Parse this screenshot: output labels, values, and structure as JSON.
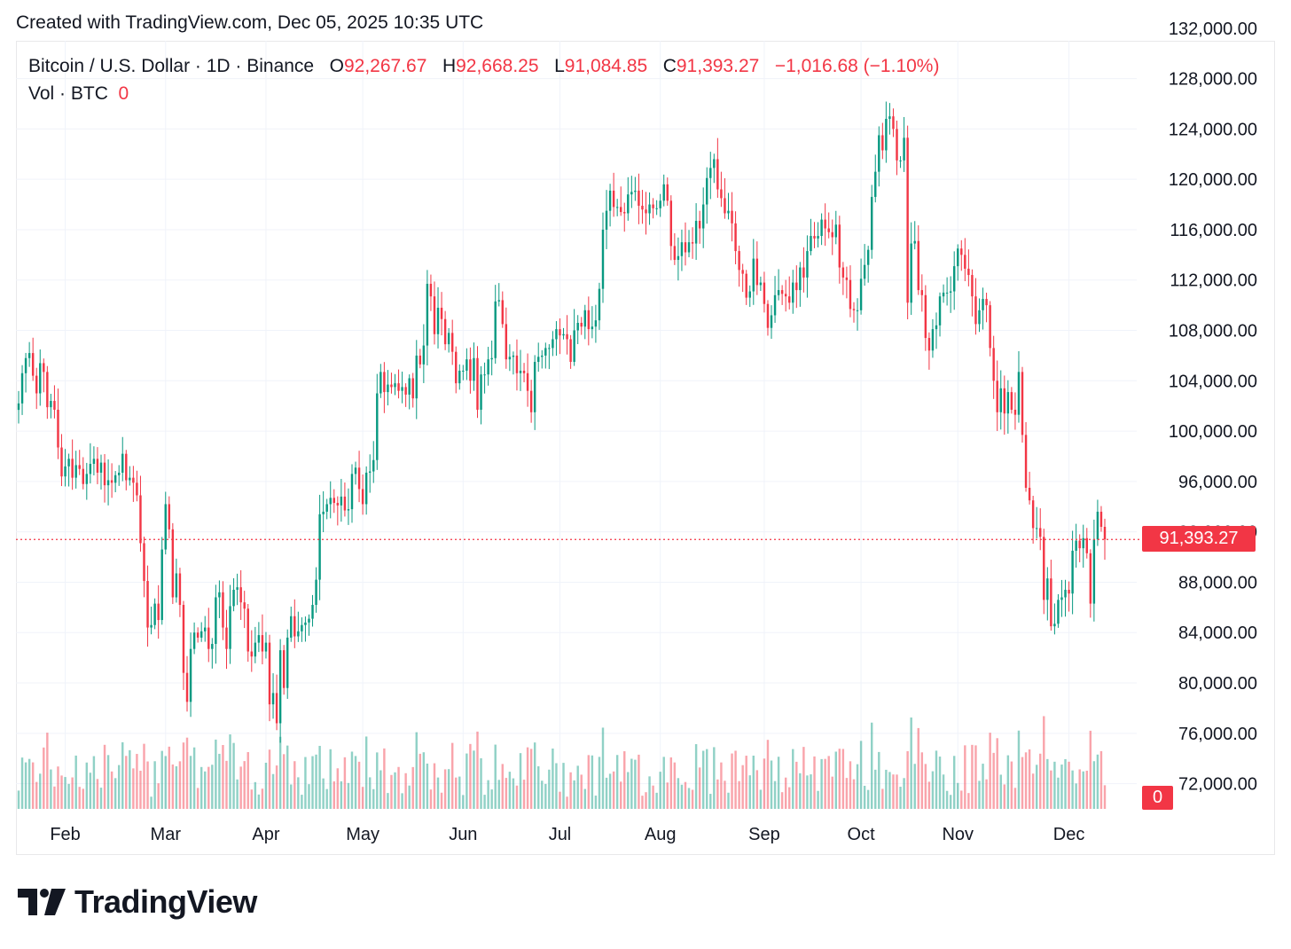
{
  "header": {
    "created_note": "Created with TradingView.com, Dec 05, 2025 10:35 UTC"
  },
  "legend": {
    "symbol": "Bitcoin / U.S. Dollar · 1D · Binance",
    "o_label": "O",
    "o_value": "92,267.67",
    "h_label": "H",
    "h_value": "92,668.25",
    "l_label": "L",
    "l_value": "91,084.85",
    "c_label": "C",
    "c_value": "91,393.27",
    "change": "−1,016.68 (−1.10%)",
    "vol_label": "Vol · BTC",
    "vol_value": "0"
  },
  "price_tag": "91,393.27",
  "vol_tag": "0",
  "logo": {
    "text": "TradingView"
  },
  "colors": {
    "up": "#089981",
    "down": "#f23645",
    "grid": "#f0f3fa",
    "text": "#131722"
  },
  "chart_data": {
    "type": "candlestick",
    "ylim": [
      70000,
      132000
    ],
    "y_ticks": [
      "132,000.00",
      "128,000.00",
      "124,000.00",
      "120,000.00",
      "116,000.00",
      "112,000.00",
      "108,000.00",
      "104,000.00",
      "100,000.00",
      "96,000.00",
      "92,000.00",
      "88,000.00",
      "84,000.00",
      "80,000.00",
      "76,000.00",
      "72,000.00"
    ],
    "y_tick_values": [
      132000,
      128000,
      124000,
      120000,
      116000,
      112000,
      108000,
      104000,
      100000,
      96000,
      92000,
      88000,
      84000,
      80000,
      76000,
      72000
    ],
    "x_labels": [
      "Feb",
      "Mar",
      "Apr",
      "May",
      "Jun",
      "Jul",
      "Aug",
      "Sep",
      "Oct",
      "Nov",
      "Dec"
    ],
    "x_label_day_index": [
      13,
      41,
      69,
      96,
      124,
      151,
      179,
      208,
      235,
      262,
      293
    ],
    "last_price": 91393.27,
    "closes": [
      102200,
      104600,
      105800,
      106200,
      104400,
      103000,
      105400,
      104700,
      101900,
      102400,
      101700,
      98700,
      96400,
      97200,
      97800,
      96300,
      97300,
      97000,
      95800,
      96600,
      97400,
      97800,
      96700,
      97500,
      95700,
      96100,
      95900,
      96500,
      96700,
      98200,
      96100,
      96300,
      95900,
      94900,
      91100,
      88100,
      84400,
      84600,
      86300,
      85000,
      90600,
      94200,
      92200,
      86800,
      88700,
      86200,
      80800,
      78500,
      82700,
      84000,
      83600,
      84100,
      84400,
      82700,
      83100,
      86800,
      87200,
      84400,
      82700,
      86100,
      87400,
      87600,
      86400,
      85900,
      82500,
      82100,
      83200,
      83800,
      82500,
      83200,
      78300,
      79200,
      76800,
      82600,
      79600,
      83600,
      85300,
      83700,
      84100,
      84600,
      84800,
      85100,
      86200,
      88200,
      93400,
      93600,
      94200,
      94700,
      94300,
      94100,
      94800,
      93700,
      93800,
      96600,
      97100,
      95400,
      94200,
      96700,
      96800,
      97700,
      103000,
      104700,
      103100,
      103700,
      103500,
      103800,
      103200,
      103500,
      102900,
      104200,
      102600,
      106000,
      105300,
      106800,
      111700,
      110700,
      107700,
      109800,
      108900,
      106900,
      107800,
      106300,
      103800,
      104800,
      104800,
      105700,
      104000,
      105800,
      101700,
      104500,
      104500,
      105700,
      105800,
      110300,
      110400,
      108500,
      105700,
      105900,
      106000,
      104600,
      104800,
      104600,
      103200,
      101500,
      105500,
      105900,
      106000,
      106600,
      106600,
      107300,
      108100,
      107600,
      107700,
      107300,
      105500,
      108000,
      108600,
      108300,
      109600,
      108100,
      108300,
      108800,
      111300,
      116000,
      117500,
      119100,
      117800,
      117800,
      117400,
      117300,
      118800,
      119000,
      119100,
      117900,
      117600,
      117300,
      118000,
      117700,
      117700,
      118300,
      119600,
      118300,
      114700,
      113600,
      113900,
      115000,
      114200,
      115000,
      114900,
      116700,
      116100,
      118000,
      120100,
      120900,
      121600,
      119200,
      118500,
      117300,
      117500,
      116500,
      114300,
      112800,
      112500,
      110600,
      111100,
      113700,
      111600,
      111800,
      110100,
      108200,
      109200,
      110800,
      111200,
      110900,
      110700,
      110200,
      111800,
      111200,
      113000,
      112200,
      114300,
      115500,
      115300,
      115500,
      116800,
      116100,
      115800,
      115400,
      116400,
      113000,
      112200,
      112000,
      109700,
      109600,
      109600,
      112100,
      113200,
      114400,
      118600,
      120600,
      123500,
      122300,
      124800,
      125000,
      124000,
      121500,
      121500,
      123300,
      110200,
      114900,
      115100,
      111200,
      110800,
      107400,
      106400,
      108100,
      108400,
      110700,
      111000,
      111000,
      111100,
      113100,
      114500,
      114000,
      112900,
      112400,
      110700,
      108500,
      109600,
      110500,
      110000,
      106600,
      104000,
      101500,
      103400,
      101400,
      103100,
      101700,
      101300,
      104700,
      99700,
      95500,
      94500,
      92300,
      92300,
      91600,
      86600,
      88300,
      84500,
      84700,
      86600,
      86800,
      87400,
      87100,
      90500,
      91300,
      90700,
      91500,
      90300,
      86300,
      91400,
      93600,
      92400,
      91400
    ],
    "volumes_note": "Volume pane shown with scaled bars; scale not labeled"
  }
}
